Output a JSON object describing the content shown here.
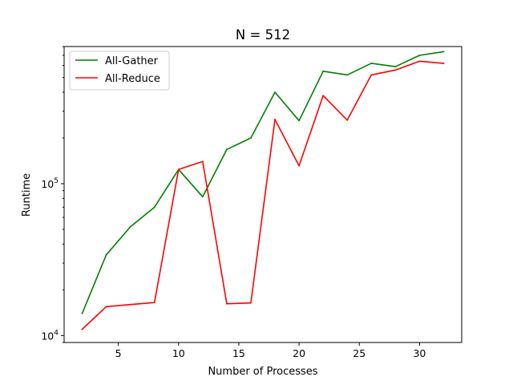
{
  "chart_data": {
    "type": "line",
    "title": "N = 512",
    "xlabel": "Number of Processes",
    "ylabel": "Runtime",
    "yscale": "log",
    "xlim": [
      0.5,
      33.5
    ],
    "ylim": [
      9000,
      800000
    ],
    "xticks": [
      5,
      10,
      15,
      20,
      25,
      30
    ],
    "yticks": [
      {
        "value": 10000,
        "base": "10",
        "exp": "4"
      },
      {
        "value": 100000,
        "base": "10",
        "exp": "5"
      }
    ],
    "grid": false,
    "legend_position": "upper-left",
    "series": [
      {
        "name": "All-Gather",
        "color": "#008000",
        "x": [
          2,
          4,
          6,
          8,
          10,
          12,
          14,
          16,
          18,
          20,
          22,
          24,
          26,
          28,
          30,
          32
        ],
        "y": [
          14000,
          34000,
          52000,
          70000,
          124000,
          82000,
          168000,
          200000,
          400000,
          260000,
          550000,
          520000,
          620000,
          590000,
          700000,
          740000
        ]
      },
      {
        "name": "All-Reduce",
        "color": "#ff0000",
        "x": [
          2,
          4,
          6,
          8,
          10,
          12,
          14,
          16,
          18,
          20,
          22,
          24,
          26,
          28,
          30,
          32
        ],
        "y": [
          11000,
          15500,
          16000,
          16500,
          124000,
          140000,
          16200,
          16400,
          265000,
          131000,
          380000,
          262000,
          520000,
          560000,
          640000,
          620000
        ]
      }
    ]
  }
}
